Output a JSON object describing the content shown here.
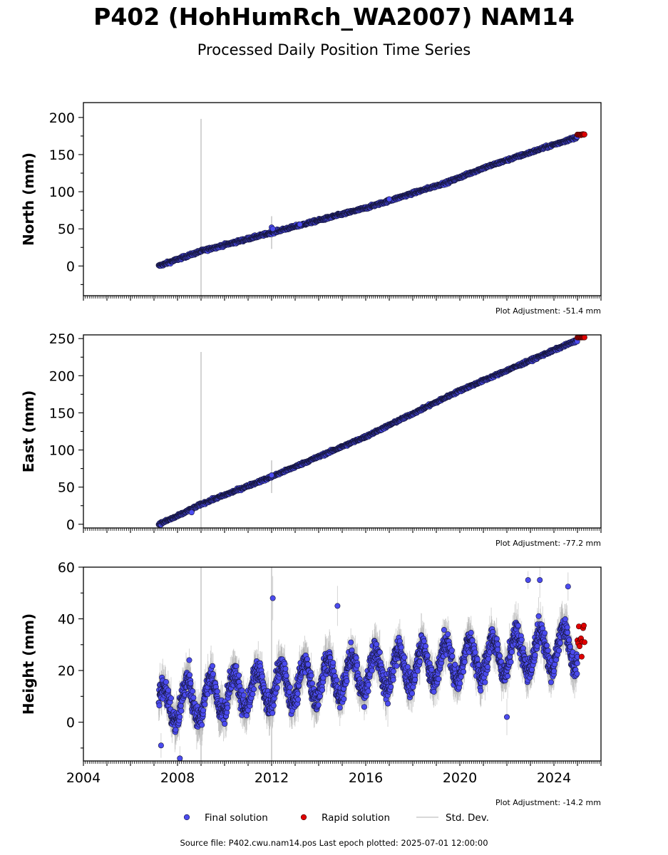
{
  "title": "P402 (HohHumRch_WA2007) NAM14",
  "subtitle": "Processed Daily Position Time Series",
  "chart_data": [
    {
      "type": "scatter",
      "component": "north",
      "ylabel": "North (mm)",
      "ylim": [
        -40,
        220
      ],
      "yticks": [
        0,
        50,
        100,
        150,
        200
      ],
      "xlim": [
        2004,
        2026
      ],
      "adjustment_label": "Plot Adjustment: -51.4 mm",
      "trend": [
        [
          2007.2,
          0
        ],
        [
          2009.0,
          20
        ],
        [
          2012.0,
          45
        ],
        [
          2016.0,
          78
        ],
        [
          2019.5,
          113
        ],
        [
          2021.0,
          132
        ],
        [
          2025.3,
          177
        ]
      ],
      "noise_mm": 1.3,
      "outliers": [
        [
          2012.0,
          52
        ],
        [
          2012.05,
          50
        ],
        [
          2017.0,
          90
        ],
        [
          2013.2,
          56
        ]
      ],
      "spikes": [
        [
          2009.0,
          20,
          178
        ],
        [
          2012.0,
          45,
          22
        ]
      ],
      "rapid": [
        2025.0,
        2025.3,
        177
      ]
    },
    {
      "type": "scatter",
      "component": "east",
      "ylabel": "East (mm)",
      "ylim": [
        -5,
        255
      ],
      "yticks": [
        0,
        50,
        100,
        150,
        200,
        250
      ],
      "xlim": [
        2004,
        2026
      ],
      "adjustment_label": "Plot Adjustment: -77.2 mm",
      "trend": [
        [
          2007.2,
          0
        ],
        [
          2008.0,
          11
        ],
        [
          2009.0,
          27
        ],
        [
          2012.0,
          64
        ],
        [
          2016.0,
          118
        ],
        [
          2020.0,
          180
        ],
        [
          2025.3,
          252
        ]
      ],
      "noise_mm": 1.2,
      "outliers": [
        [
          2012.0,
          66
        ],
        [
          2008.6,
          16
        ]
      ],
      "spikes": [
        [
          2009.0,
          27,
          205
        ],
        [
          2012.0,
          64,
          22
        ]
      ],
      "rapid": [
        2025.0,
        2025.3,
        252
      ]
    },
    {
      "type": "scatter",
      "component": "height",
      "ylabel": "Height (mm)",
      "ylim": [
        -15,
        60
      ],
      "yticks": [
        0,
        20,
        40,
        60
      ],
      "xlim": [
        2004,
        2026
      ],
      "xticks": [
        2004,
        2008,
        2012,
        2016,
        2020,
        2024
      ],
      "adjustment_label": "Plot Adjustment: -14.2 mm",
      "trend": [
        [
          2007.2,
          6
        ],
        [
          2010.0,
          11
        ],
        [
          2013.0,
          15
        ],
        [
          2016.0,
          19
        ],
        [
          2019.0,
          23
        ],
        [
          2022.0,
          26
        ],
        [
          2025.3,
          30
        ]
      ],
      "seasonal_amplitude_mm": 7.5,
      "noise_mm": 3.0,
      "outliers": [
        [
          2012.05,
          48
        ],
        [
          2014.8,
          45
        ],
        [
          2022.0,
          2
        ],
        [
          2008.1,
          -14
        ],
        [
          2023.4,
          55
        ],
        [
          2022.9,
          55
        ],
        [
          2024.6,
          52.5
        ],
        [
          2008.5,
          24
        ],
        [
          2007.3,
          -9
        ]
      ],
      "spikes": [
        [
          2009.0,
          8,
          60
        ],
        [
          2012.0,
          15,
          60
        ]
      ],
      "rapid": [
        2025.0,
        2025.3,
        32,
        6
      ]
    }
  ],
  "legend": {
    "items": [
      {
        "label": "Final solution",
        "color": "#4b4bef"
      },
      {
        "label": "Rapid solution",
        "color": "#e00000"
      },
      {
        "label": "Std. Dev.",
        "color": "#cccccc"
      }
    ],
    "placement": "bottom-center"
  },
  "footer": "Source file: P402.cwu.nam14.pos  Last epoch plotted: 2025-07-01 12:00:00"
}
